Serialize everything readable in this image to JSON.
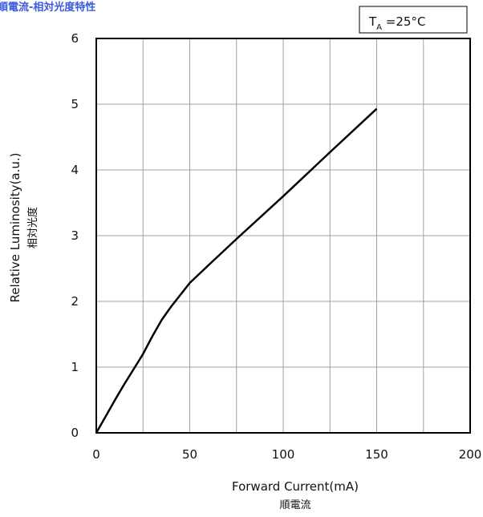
{
  "chart_data": {
    "type": "line",
    "title": "順電流-相対光度特性",
    "condition": {
      "symbol": "T",
      "subscript": "A",
      "text": " =25°C"
    },
    "xlabel": "Forward Current(mA)",
    "xlabel_sub": "順電流",
    "ylabel": "Relative Luminosity(a.u.)",
    "ylabel_sub": "相対光度",
    "xlim": [
      0,
      200
    ],
    "ylim": [
      0,
      6
    ],
    "xticks": [
      "0",
      "50",
      "100",
      "150",
      "200"
    ],
    "yticks": [
      "0",
      "1",
      "2",
      "3",
      "4",
      "5",
      "6"
    ],
    "grid": true,
    "series": [
      {
        "x": [
          0,
          5,
          10,
          15,
          20,
          25,
          30,
          35,
          40,
          50,
          60,
          75,
          100,
          125,
          150
        ],
        "y": [
          0,
          0.25,
          0.5,
          0.74,
          0.97,
          1.2,
          1.47,
          1.72,
          1.92,
          2.28,
          2.55,
          2.95,
          3.6,
          4.27,
          4.93
        ]
      }
    ]
  }
}
